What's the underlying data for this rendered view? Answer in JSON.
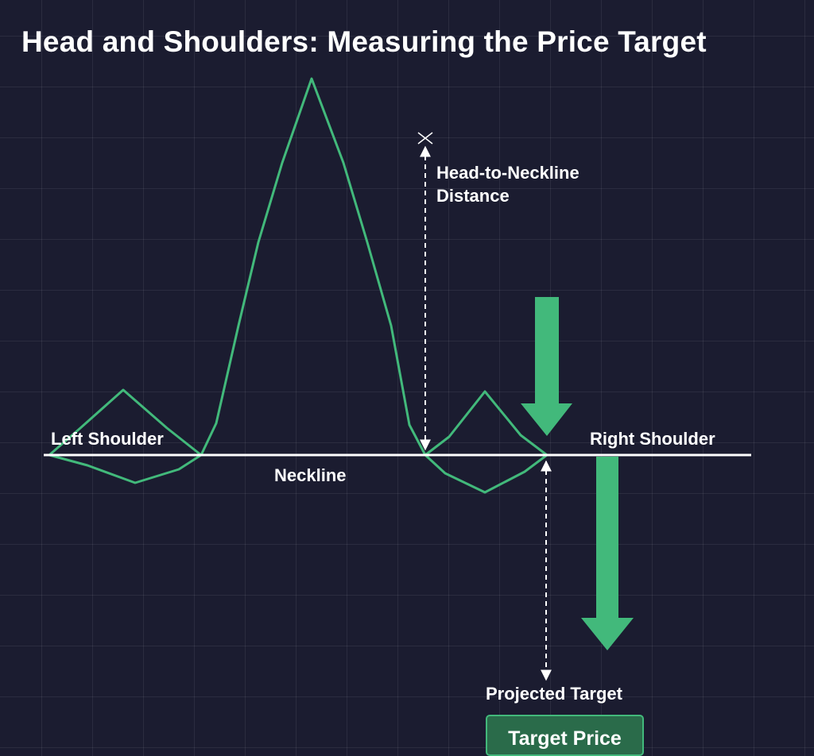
{
  "title": "Head and Shoulders: Measuring the Price Target",
  "labels": {
    "left_shoulder": "Left Shoulder",
    "right_shoulder": "Right Shoulder",
    "neckline": "Neckline",
    "distance_line1": "Head-to-Neckline",
    "distance_line2": "Distance",
    "projected_target": "Projected Target",
    "target_price": "Target Price"
  },
  "colors": {
    "background": "#1b1c30",
    "price_line": "#42b97b",
    "arrow_fill": "#42b97b",
    "neckline": "#ffffff",
    "measure_line": "#ffffff"
  }
}
